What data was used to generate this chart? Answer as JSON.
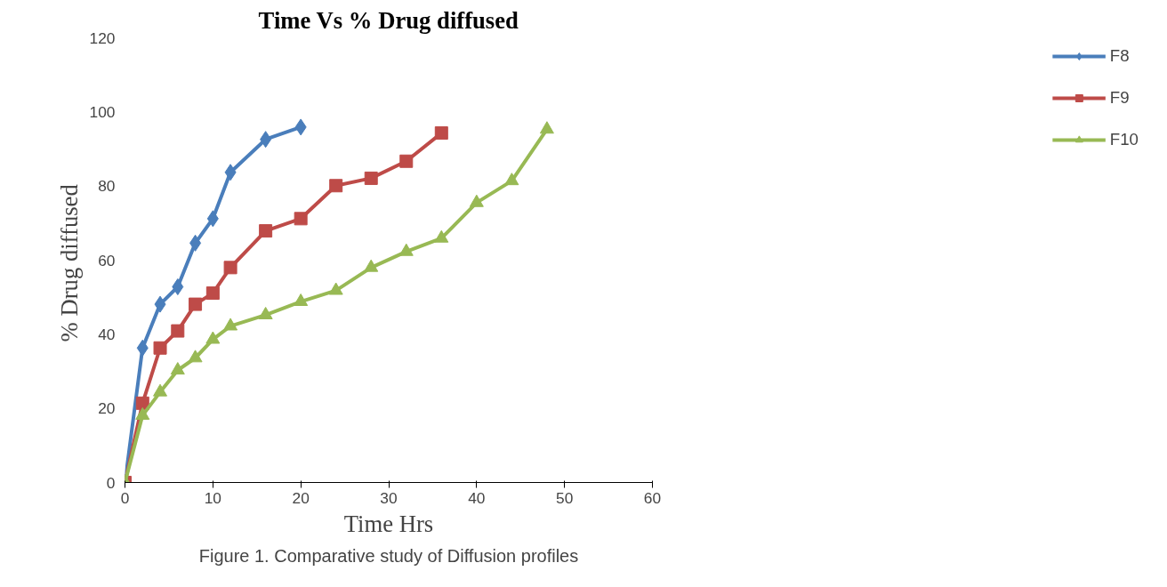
{
  "chart_data": {
    "type": "line",
    "title": "Time Vs % Drug diffused",
    "xlabel": "Time Hrs",
    "ylabel": "% Drug  diffused",
    "annotations": [
      "Figure 1. Comparative study of Diffusion profiles"
    ],
    "xlim": [
      0,
      60
    ],
    "xticks": [
      0,
      10,
      20,
      30,
      40,
      50,
      60
    ],
    "ylim": [
      0,
      120
    ],
    "yticks": [
      0,
      20,
      40,
      60,
      80,
      100,
      120
    ],
    "grid": false,
    "legend": "right",
    "line_style": "solid",
    "series": [
      {
        "name": "F8",
        "color": "#4a7ebb",
        "marker": "diamond",
        "x": [
          0,
          2,
          4,
          6,
          8,
          10,
          12,
          16,
          20
        ],
        "values": [
          0,
          36.3,
          48.1,
          52.8,
          64.6,
          71.2,
          83.7,
          92.6,
          95.9
        ]
      },
      {
        "name": "F9",
        "color": "#be4b48",
        "marker": "square",
        "x": [
          0,
          2,
          4,
          6,
          8,
          10,
          12,
          16,
          20,
          24,
          28,
          32,
          36
        ],
        "values": [
          0,
          21.4,
          36.3,
          40.9,
          48.1,
          51.1,
          58,
          67.9,
          71.2,
          80.1,
          82.1,
          86.7,
          94.3
        ]
      },
      {
        "name": "F10",
        "color": "#98b954",
        "marker": "triangle",
        "x": [
          0,
          2,
          4,
          6,
          8,
          10,
          12,
          16,
          20,
          24,
          28,
          32,
          36,
          40,
          44,
          48
        ],
        "values": [
          0,
          18.1,
          24.4,
          30.3,
          33.6,
          38.6,
          42.2,
          45.2,
          48.8,
          51.8,
          58,
          62.3,
          65.9,
          75.5,
          81.4,
          95.3
        ]
      }
    ]
  }
}
